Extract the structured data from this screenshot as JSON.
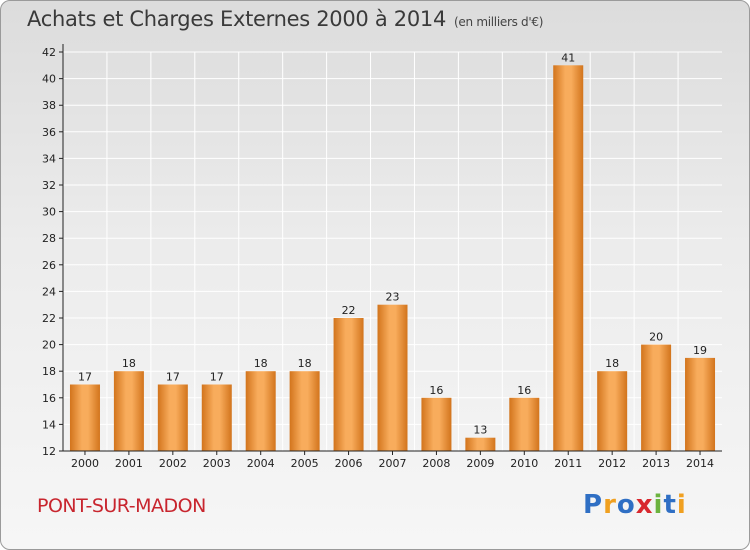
{
  "header": {
    "title": "Achats et Charges Externes 2000 à 2014",
    "subtitle": "(en milliers d'€)"
  },
  "footer": {
    "city": "PONT-SUR-MADON",
    "logo": "Proxiti"
  },
  "colors": {
    "bar_light": "#f8ac5c",
    "bar_dark": "#d2741c",
    "axis": "#222222",
    "grid": "#ffffff",
    "city_text": "#c8252e"
  },
  "chart_data": {
    "type": "bar",
    "title": "Achats et Charges Externes 2000 à 2014",
    "subtitle": "(en milliers d'€)",
    "xlabel": "",
    "ylabel": "",
    "categories": [
      "2000",
      "2001",
      "2002",
      "2003",
      "2004",
      "2005",
      "2006",
      "2007",
      "2008",
      "2009",
      "2010",
      "2011",
      "2012",
      "2013",
      "2014"
    ],
    "values": [
      17,
      18,
      17,
      17,
      18,
      18,
      22,
      23,
      16,
      13,
      16,
      41,
      18,
      20,
      19
    ],
    "ylim": [
      12,
      42
    ],
    "yticks": [
      12,
      14,
      16,
      18,
      20,
      22,
      24,
      26,
      28,
      30,
      32,
      34,
      36,
      38,
      40,
      42
    ],
    "grid": true,
    "legend": "none"
  }
}
